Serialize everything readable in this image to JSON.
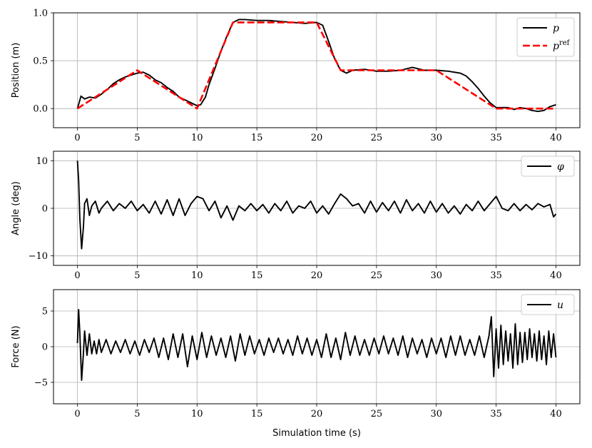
{
  "chart_data": [
    {
      "type": "line",
      "ylabel": "Position (m)",
      "xlabel": "",
      "xlim": [
        -2,
        42
      ],
      "ylim": [
        -0.2,
        1.0
      ],
      "xticks": [
        0,
        5,
        10,
        15,
        20,
        25,
        30,
        35,
        40
      ],
      "yticks": [
        0.0,
        0.5,
        1.0
      ],
      "ytick_labels": [
        "0.0",
        "0.5",
        "1.0"
      ],
      "grid": true,
      "legend": "top-right",
      "series": [
        {
          "name": "p",
          "color": "#000000",
          "style": "solid",
          "x": [
            0,
            0.3,
            0.6,
            1,
            1.5,
            2,
            2.5,
            3,
            3.5,
            4,
            4.5,
            5,
            5.5,
            6,
            6.5,
            7,
            7.5,
            8,
            8.5,
            9,
            9.5,
            10,
            10.3,
            10.7,
            11,
            11.5,
            12,
            12.5,
            13,
            13.5,
            14,
            15,
            16,
            17,
            18,
            19,
            20,
            20.5,
            21,
            21.5,
            22,
            22.5,
            23,
            24,
            25,
            26,
            27,
            28,
            29,
            30,
            31,
            32,
            32.5,
            33,
            33.5,
            34,
            34.5,
            35,
            35.5,
            36,
            36.5,
            37,
            37.5,
            38,
            38.5,
            39,
            39.5,
            40
          ],
          "y": [
            0.0,
            0.13,
            0.1,
            0.12,
            0.11,
            0.15,
            0.2,
            0.26,
            0.3,
            0.33,
            0.35,
            0.37,
            0.38,
            0.35,
            0.3,
            0.27,
            0.22,
            0.18,
            0.12,
            0.09,
            0.06,
            0.03,
            0.04,
            0.12,
            0.25,
            0.42,
            0.6,
            0.76,
            0.9,
            0.93,
            0.93,
            0.92,
            0.92,
            0.91,
            0.9,
            0.89,
            0.9,
            0.87,
            0.7,
            0.52,
            0.4,
            0.37,
            0.4,
            0.41,
            0.39,
            0.39,
            0.4,
            0.43,
            0.4,
            0.4,
            0.39,
            0.37,
            0.34,
            0.28,
            0.21,
            0.13,
            0.06,
            0.01,
            0.01,
            0.01,
            -0.01,
            0.01,
            0.0,
            -0.02,
            -0.03,
            -0.02,
            0.02,
            0.04
          ]
        },
        {
          "name": "p^ref",
          "color": "#ff0000",
          "style": "dashed",
          "x": [
            0,
            5,
            10,
            13,
            20,
            22,
            30,
            35,
            40
          ],
          "y": [
            0.0,
            0.4,
            0.0,
            0.9,
            0.9,
            0.4,
            0.4,
            0.0,
            0.0
          ]
        }
      ]
    },
    {
      "type": "line",
      "ylabel": "Angle (deg)",
      "xlabel": "",
      "xlim": [
        -2,
        42
      ],
      "ylim": [
        -12,
        12
      ],
      "xticks": [
        0,
        5,
        10,
        15,
        20,
        25,
        30,
        35,
        40
      ],
      "yticks": [
        -10,
        0,
        10
      ],
      "ytick_labels": [
        "−10",
        "0",
        "10"
      ],
      "grid": true,
      "legend": "top-right",
      "series": [
        {
          "name": "φ",
          "color": "#000000",
          "style": "solid",
          "x": [
            0,
            0.1,
            0.2,
            0.35,
            0.5,
            0.6,
            0.8,
            1.0,
            1.2,
            1.5,
            1.8,
            2.0,
            2.5,
            3.0,
            3.5,
            4.0,
            4.5,
            5.0,
            5.5,
            6.0,
            6.5,
            7.0,
            7.5,
            8.0,
            8.5,
            9.0,
            9.5,
            10.0,
            10.5,
            11.0,
            11.5,
            12.0,
            12.5,
            13.0,
            13.5,
            14.0,
            14.5,
            15.0,
            15.5,
            16.0,
            16.5,
            17.0,
            17.5,
            18.0,
            18.5,
            19.0,
            19.5,
            20.0,
            20.5,
            21.0,
            21.5,
            22.0,
            22.5,
            23.0,
            23.5,
            24.0,
            24.5,
            25.0,
            25.5,
            26.0,
            26.5,
            27.0,
            27.5,
            28.0,
            28.5,
            29.0,
            29.5,
            30.0,
            30.5,
            31.0,
            31.5,
            32.0,
            32.5,
            33.0,
            33.5,
            34.0,
            34.5,
            35.0,
            35.5,
            36.0,
            36.5,
            37.0,
            37.5,
            38.0,
            38.5,
            39.0,
            39.5,
            39.8,
            40.0
          ],
          "y": [
            10,
            6,
            -2,
            -8.5,
            -4,
            1,
            2,
            -1.5,
            0.5,
            1.5,
            -1,
            0,
            1.5,
            -0.5,
            1,
            0,
            1.5,
            -0.5,
            0.8,
            -1,
            1.5,
            -1.2,
            1.8,
            -1.5,
            2,
            -1.5,
            1,
            2.5,
            2,
            -0.5,
            1.5,
            -2,
            0.5,
            -2.5,
            0.5,
            -0.5,
            1,
            -0.5,
            0.8,
            -1,
            1,
            -0.5,
            1.5,
            -1,
            0.5,
            0,
            1.5,
            -1,
            0.5,
            -1.2,
            1,
            3,
            2,
            0.5,
            1,
            -1,
            1.5,
            -0.8,
            1.2,
            -0.5,
            1.5,
            -1,
            1.8,
            -0.5,
            1,
            -1,
            1.5,
            -0.8,
            1,
            -1,
            0.5,
            -1.2,
            0.8,
            -0.5,
            1.5,
            -0.5,
            1,
            2.5,
            0,
            -0.5,
            1,
            -0.5,
            0.8,
            -0.3,
            1,
            0.3,
            0.8,
            -1.8,
            -1.2
          ]
        }
      ]
    },
    {
      "type": "line",
      "ylabel": "Force (N)",
      "xlabel": "Simulation time (s)",
      "xlim": [
        -2,
        42
      ],
      "ylim": [
        -8,
        8
      ],
      "xticks": [
        0,
        5,
        10,
        15,
        20,
        25,
        30,
        35,
        40
      ],
      "yticks": [
        -5,
        0,
        5
      ],
      "ytick_labels": [
        "−5",
        "0",
        "5"
      ],
      "grid": true,
      "legend": "top-right",
      "series": [
        {
          "name": "u",
          "color": "#000000",
          "style": "solid",
          "x": [
            0,
            0.1,
            0.2,
            0.35,
            0.5,
            0.6,
            0.8,
            1.0,
            1.2,
            1.4,
            1.6,
            1.8,
            2.0,
            2.4,
            2.8,
            3.2,
            3.6,
            4.0,
            4.4,
            4.8,
            5.2,
            5.6,
            6.0,
            6.4,
            6.8,
            7.2,
            7.6,
            8.0,
            8.4,
            8.8,
            9.2,
            9.6,
            10.0,
            10.4,
            10.8,
            11.2,
            11.6,
            12.0,
            12.4,
            12.8,
            13.2,
            13.6,
            14.0,
            14.4,
            14.8,
            15.2,
            15.6,
            16.0,
            16.4,
            16.8,
            17.2,
            17.6,
            18.0,
            18.4,
            18.8,
            19.2,
            19.6,
            20.0,
            20.4,
            20.8,
            21.2,
            21.6,
            22.0,
            22.4,
            22.8,
            23.2,
            23.6,
            24.0,
            24.4,
            24.8,
            25.2,
            25.6,
            26.0,
            26.4,
            26.8,
            27.2,
            27.6,
            28.0,
            28.4,
            28.8,
            29.2,
            29.6,
            30.0,
            30.4,
            30.8,
            31.2,
            31.6,
            32.0,
            32.4,
            32.8,
            33.2,
            33.6,
            34.0,
            34.4,
            34.6,
            34.8,
            35.0,
            35.2,
            35.4,
            35.6,
            35.8,
            36.0,
            36.2,
            36.4,
            36.6,
            36.8,
            37.0,
            37.2,
            37.4,
            37.6,
            37.8,
            38.0,
            38.2,
            38.4,
            38.6,
            38.8,
            39.0,
            39.2,
            39.4,
            39.6,
            39.8,
            40.0
          ],
          "y": [
            0.5,
            5.2,
            2,
            -4.7,
            -1,
            2.2,
            -1.2,
            1.8,
            -1,
            0.8,
            -1,
            1,
            -0.8,
            1,
            -1,
            0.8,
            -0.8,
            1,
            -1,
            0.8,
            -1.2,
            1,
            -0.8,
            1.2,
            -1.5,
            1.2,
            -1.8,
            1.8,
            -1.5,
            1.8,
            -2.8,
            1.5,
            -1.8,
            2,
            -1.5,
            1.5,
            -1.2,
            1.2,
            -1.5,
            1.5,
            -2,
            1.8,
            -1.2,
            1.5,
            -1,
            1,
            -1.2,
            1.2,
            -0.8,
            1.2,
            -1,
            1,
            -1.2,
            1.5,
            -1,
            1.2,
            -1.2,
            1,
            -1.5,
            1.8,
            -1.5,
            1.2,
            -1.8,
            2,
            -1.2,
            1.5,
            -1.2,
            1,
            -1.2,
            1.2,
            -1,
            1.5,
            -1,
            1.2,
            -1.2,
            1.5,
            -1.5,
            1.2,
            -1,
            1,
            -1.5,
            1.2,
            -1,
            1.2,
            -1.5,
            1.5,
            -1.2,
            1.5,
            -1.2,
            1,
            -1.2,
            1.5,
            -1.5,
            1.5,
            4.2,
            -4.2,
            2.5,
            -3,
            3,
            -2.5,
            2.2,
            -2,
            1.8,
            -3,
            3.2,
            -2.5,
            2,
            -2.2,
            2,
            -1.8,
            2.5,
            -1.5,
            1.8,
            -2,
            2.2,
            -1.8,
            1.5,
            -2.5,
            2.2,
            -1.5,
            1.8,
            -1.5
          ]
        }
      ]
    }
  ]
}
